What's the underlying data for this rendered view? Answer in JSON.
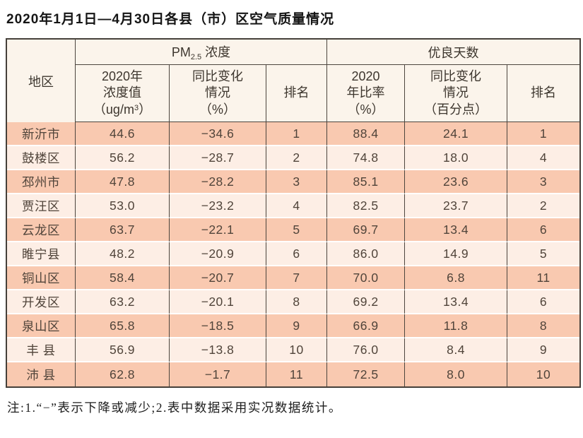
{
  "title": "2020年1月1日—4月30日各县（市）区空气质量情况",
  "note": "注:1.“−”表示下降或减少;2.表中数据采用实况数据统计。",
  "colors": {
    "row_odd_bg": "#f9c9b0",
    "row_even_bg": "#fdeee5",
    "header_bg": "#fbf4eb",
    "border_dark": "#4c453e",
    "text_data": "#50443a"
  },
  "table": {
    "header": {
      "region": "地区",
      "pm_group": {
        "prefix": "PM",
        "sub": "2.5",
        "suffix": " 浓度"
      },
      "days_group": "优良天数",
      "pm_value": {
        "line1": "2020年",
        "line2": "浓度值",
        "unit_pre": "（ug/m",
        "unit_sup": "3",
        "unit_post": "）"
      },
      "pm_change": {
        "line1": "同比变化",
        "line2": "情况",
        "line3": "（%）"
      },
      "pm_rank": "排名",
      "days_rate": {
        "line1": "2020",
        "line2": "年比率",
        "line3": "（%）"
      },
      "days_change": {
        "line1": "同比变化",
        "line2": "情况",
        "line3": "（百分点）"
      },
      "days_rank": "排名"
    },
    "rows": [
      {
        "region": "新沂市",
        "pm_value": "44.6",
        "pm_change": "−34.6",
        "pm_rank": "1",
        "days_rate": "88.4",
        "days_change": "24.1",
        "days_rank": "1"
      },
      {
        "region": "鼓楼区",
        "pm_value": "56.2",
        "pm_change": "−28.7",
        "pm_rank": "2",
        "days_rate": "74.8",
        "days_change": "18.0",
        "days_rank": "4"
      },
      {
        "region": "邳州市",
        "pm_value": "47.8",
        "pm_change": "−28.2",
        "pm_rank": "3",
        "days_rate": "85.1",
        "days_change": "23.6",
        "days_rank": "3"
      },
      {
        "region": "贾汪区",
        "pm_value": "53.0",
        "pm_change": "−23.2",
        "pm_rank": "4",
        "days_rate": "82.5",
        "days_change": "23.7",
        "days_rank": "2"
      },
      {
        "region": "云龙区",
        "pm_value": "63.7",
        "pm_change": "−22.1",
        "pm_rank": "5",
        "days_rate": "69.7",
        "days_change": "13.4",
        "days_rank": "6"
      },
      {
        "region": "睢宁县",
        "pm_value": "48.2",
        "pm_change": "−20.9",
        "pm_rank": "6",
        "days_rate": "86.0",
        "days_change": "14.9",
        "days_rank": "5"
      },
      {
        "region": "铜山区",
        "pm_value": "58.4",
        "pm_change": "−20.7",
        "pm_rank": "7",
        "days_rate": "70.0",
        "days_change": "6.8",
        "days_rank": "11"
      },
      {
        "region": "开发区",
        "pm_value": "63.2",
        "pm_change": "−20.1",
        "pm_rank": "8",
        "days_rate": "69.2",
        "days_change": "13.4",
        "days_rank": "6"
      },
      {
        "region": "泉山区",
        "pm_value": "65.8",
        "pm_change": "−18.5",
        "pm_rank": "9",
        "days_rate": "66.9",
        "days_change": "11.8",
        "days_rank": "8"
      },
      {
        "region": "丰 县",
        "pm_value": "56.9",
        "pm_change": "−13.8",
        "pm_rank": "10",
        "days_rate": "76.0",
        "days_change": "8.4",
        "days_rank": "9"
      },
      {
        "region": "沛 县",
        "pm_value": "62.8",
        "pm_change": "−1.7",
        "pm_rank": "11",
        "days_rate": "72.5",
        "days_change": "8.0",
        "days_rank": "10"
      }
    ]
  }
}
